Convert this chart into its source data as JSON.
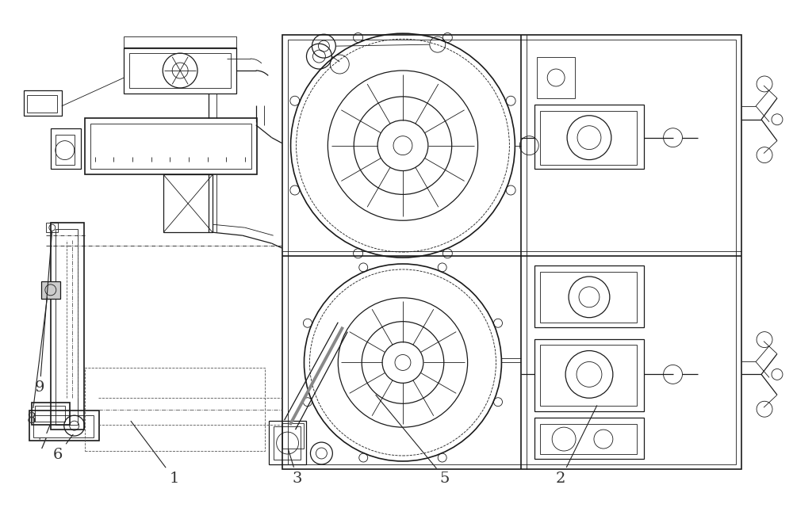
{
  "bg_color": "#ffffff",
  "line_color": "#1a1a1a",
  "label_color": "#333333",
  "fig_width": 10.0,
  "fig_height": 6.65
}
